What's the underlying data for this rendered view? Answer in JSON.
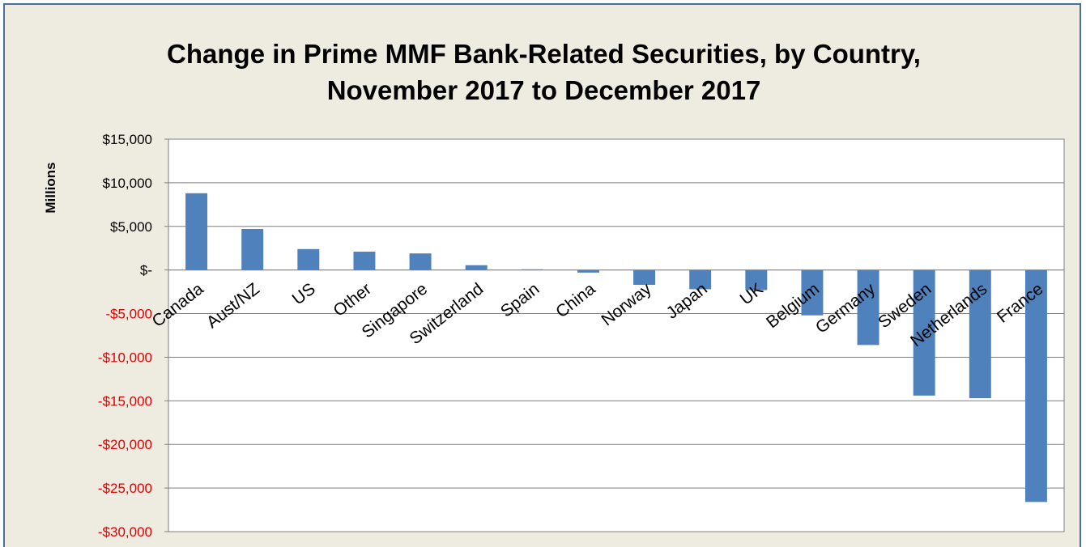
{
  "chart_data": {
    "type": "bar",
    "title": "Change in Prime MMF Bank-Related Securities, by Country,",
    "subtitle": "November 2017 to December 2017",
    "xlabel": "",
    "ylabel": "Millions",
    "categories": [
      "Canada",
      "Aust/NZ",
      "US",
      "Other",
      "Singapore",
      "Switzerland",
      "Spain",
      "China",
      "Norway",
      "Japan",
      "UK",
      "Belgium",
      "Germany",
      "Sweden",
      "Netherlands",
      "France"
    ],
    "values": [
      8800,
      4700,
      2400,
      2100,
      1900,
      550,
      80,
      -300,
      -1700,
      -2200,
      -2300,
      -5200,
      -8600,
      -14400,
      -14700,
      -26600
    ],
    "ylim": [
      -30000,
      15000
    ],
    "yticks": [
      15000,
      10000,
      5000,
      0,
      -5000,
      -10000,
      -15000,
      -20000,
      -25000,
      -30000
    ],
    "ytick_labels": [
      "$15,000",
      "$10,000",
      "$5,000",
      "$-",
      "-$5,000",
      "-$10,000",
      "-$15,000",
      "-$20,000",
      "-$25,000",
      "-$30,000"
    ],
    "grid": true,
    "legend": "none",
    "colors": {
      "bar": "#4f81bd",
      "positive_tick": "#000000",
      "negative_tick": "#e00000",
      "background": "#eeece1",
      "plot_area": "#ffffff"
    }
  }
}
